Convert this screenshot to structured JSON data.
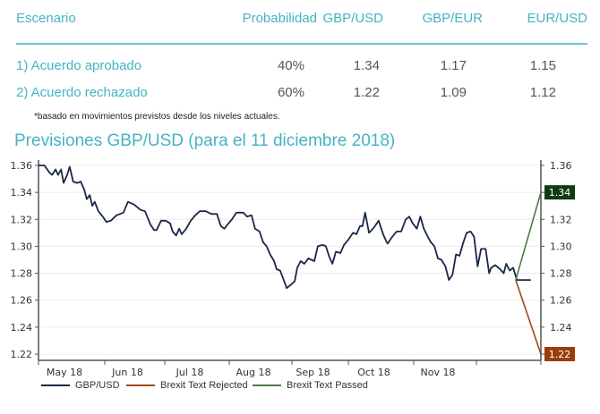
{
  "table": {
    "headers": [
      "Escenario",
      "Probabilidad",
      "GBP/USD",
      "GBP/EUR",
      "EUR/USD"
    ],
    "rows": [
      {
        "scenario": "1) Acuerdo  aprobado",
        "probability": "40%",
        "gbpusd": "1.34",
        "gbpeur": "1.17",
        "eurusd": "1.15"
      },
      {
        "scenario": "2) Acuerdo rechazado",
        "probability": "60%",
        "gbpusd": "1.22",
        "gbpeur": "1.09",
        "eurusd": "1.12"
      }
    ],
    "note": "*basado en movimientos previstos desde los niveles actuales."
  },
  "chart_title": "Previsiones GBP/USD (para el 11 diciembre 2018)",
  "chart_data": {
    "type": "line",
    "title": "Previsiones GBP/USD (para el 11 diciembre 2018)",
    "xlabel": "",
    "ylabel": "",
    "ylim": [
      1.22,
      1.36
    ],
    "y_ticks": [
      "1.36",
      "1.34",
      "1.32",
      "1.30",
      "1.28",
      "1.26",
      "1.24",
      "1.22"
    ],
    "x_tick_labels": [
      "May 18",
      "Jun 18",
      "Jul 18",
      "Aug 18",
      "Sep 18",
      "Oct 18",
      "Nov 18"
    ],
    "x_domain": [
      0,
      1
    ],
    "grid": true,
    "legend_position": "bottom",
    "colors": {
      "gbpusd": "#1b2747",
      "rejected": "#9a4a16",
      "passed": "#4e7a4c",
      "passed_badge": "#0f3a14",
      "rejected_badge": "#9a3d0c"
    },
    "series": [
      {
        "name": "GBP/USD",
        "x": [
          0,
          0.012,
          0.021,
          0.027,
          0.034,
          0.039,
          0.045,
          0.05,
          0.057,
          0.062,
          0.069,
          0.077,
          0.084,
          0.091,
          0.096,
          0.102,
          0.107,
          0.112,
          0.119,
          0.128,
          0.135,
          0.144,
          0.155,
          0.169,
          0.178,
          0.19,
          0.203,
          0.212,
          0.223,
          0.23,
          0.235,
          0.244,
          0.253,
          0.262,
          0.267,
          0.274,
          0.28,
          0.285,
          0.294,
          0.303,
          0.312,
          0.321,
          0.333,
          0.344,
          0.355,
          0.363,
          0.37,
          0.376,
          0.385,
          0.394,
          0.408,
          0.415,
          0.424,
          0.431,
          0.44,
          0.447,
          0.454,
          0.461,
          0.469,
          0.474,
          0.481,
          0.488,
          0.494,
          0.501,
          0.51,
          0.515,
          0.522,
          0.529,
          0.537,
          0.549,
          0.556,
          0.565,
          0.572,
          0.579,
          0.585,
          0.592,
          0.601,
          0.608,
          0.617,
          0.626,
          0.633,
          0.64,
          0.645,
          0.65,
          0.658,
          0.668,
          0.677,
          0.686,
          0.693,
          0.695,
          0.704,
          0.713,
          0.722,
          0.731,
          0.738,
          0.745,
          0.753,
          0.76,
          0.767,
          0.775,
          0.781,
          0.788,
          0.795,
          0.802,
          0.81,
          0.817,
          0.824,
          0.831,
          0.838,
          0.845,
          0.852,
          0.86,
          0.867,
          0.874,
          0.881,
          0.89,
          0.897,
          0.901,
          0.909,
          0.919,
          0.926,
          0.931,
          0.938,
          0.945,
          0.952,
          0.958,
          0.963,
          0.968,
          0.973,
          0.98
        ],
        "values": [
          1.36,
          1.36,
          1.355,
          1.353,
          1.357,
          1.353,
          1.357,
          1.347,
          1.353,
          1.359,
          1.348,
          1.347,
          1.348,
          1.342,
          1.335,
          1.338,
          1.33,
          1.333,
          1.326,
          1.322,
          1.318,
          1.319,
          1.323,
          1.325,
          1.333,
          1.331,
          1.327,
          1.326,
          1.316,
          1.312,
          1.312,
          1.319,
          1.319,
          1.317,
          1.311,
          1.308,
          1.313,
          1.309,
          1.313,
          1.319,
          1.323,
          1.326,
          1.326,
          1.324,
          1.324,
          1.315,
          1.313,
          1.316,
          1.32,
          1.325,
          1.325,
          1.322,
          1.323,
          1.313,
          1.311,
          1.303,
          1.3,
          1.294,
          1.289,
          1.283,
          1.282,
          1.275,
          1.269,
          1.271,
          1.274,
          1.284,
          1.289,
          1.287,
          1.291,
          1.289,
          1.3,
          1.301,
          1.3,
          1.292,
          1.287,
          1.296,
          1.295,
          1.301,
          1.305,
          1.31,
          1.309,
          1.315,
          1.315,
          1.325,
          1.31,
          1.314,
          1.319,
          1.309,
          1.303,
          1.302,
          1.307,
          1.311,
          1.311,
          1.32,
          1.322,
          1.317,
          1.313,
          1.322,
          1.313,
          1.307,
          1.303,
          1.3,
          1.291,
          1.29,
          1.285,
          1.275,
          1.279,
          1.294,
          1.293,
          1.302,
          1.31,
          1.311,
          1.307,
          1.285,
          1.298,
          1.298,
          1.28,
          1.284,
          1.286,
          1.283,
          1.28,
          1.287,
          1.282,
          1.284,
          1.275,
          1.275,
          1.275,
          1.275,
          1.275,
          1.275
        ]
      },
      {
        "name": "Brexit Text Rejected",
        "x": [
          0.95,
          1.0
        ],
        "values": [
          1.275,
          1.22
        ]
      },
      {
        "name": "Brexit Text Passed",
        "x": [
          0.95,
          1.0
        ],
        "values": [
          1.275,
          1.34
        ]
      }
    ],
    "end_labels": [
      {
        "series": "Brexit Text Passed",
        "value": "1.34"
      },
      {
        "series": "Brexit Text Rejected",
        "value": "1.22"
      }
    ],
    "legend": [
      "GBP/USD",
      "Brexit Text Rejected",
      "Brexit Text Passed"
    ]
  }
}
